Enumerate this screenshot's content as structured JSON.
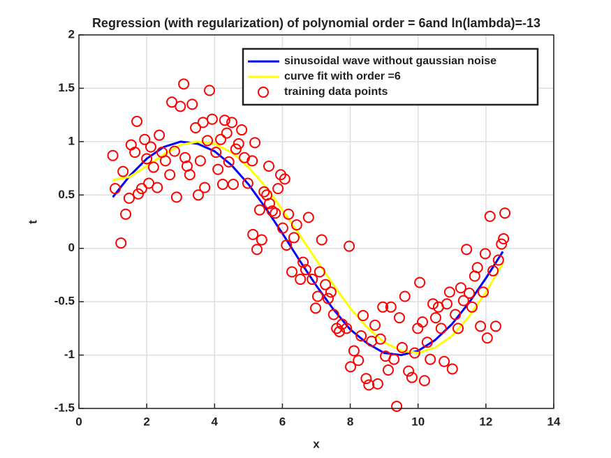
{
  "chart_data": {
    "type": "line",
    "title": "Regression (with regularization) of polynomial order = 6and ln(lambda)=-13",
    "x_label": "x",
    "y_label": "t",
    "xlim": [
      0,
      14
    ],
    "ylim": [
      -1.5,
      2
    ],
    "xticks": [
      0,
      2,
      4,
      6,
      8,
      10,
      12,
      14
    ],
    "yticks": [
      -1.5,
      -1,
      -0.5,
      0,
      0.5,
      1,
      1.5,
      2
    ],
    "grid": true,
    "legend_location": "northeast",
    "series": [
      {
        "name": "sinusoidal wave without gaussian noise",
        "color": "#0000ff",
        "style": "line",
        "x": [
          1,
          1.5,
          2,
          2.5,
          3,
          3.5,
          4,
          4.5,
          5,
          5.5,
          6,
          6.5,
          7,
          7.5,
          8,
          8.5,
          9,
          9.5,
          10,
          10.5,
          11,
          11.5,
          12,
          12.5
        ],
        "values": [
          0.48,
          0.68,
          0.84,
          0.95,
          1.0,
          0.98,
          0.91,
          0.78,
          0.6,
          0.38,
          0.14,
          -0.11,
          -0.35,
          -0.57,
          -0.76,
          -0.89,
          -0.98,
          -1.0,
          -0.96,
          -0.86,
          -0.71,
          -0.51,
          -0.28,
          -0.03
        ]
      },
      {
        "name": "curve fit with order =6",
        "color": "#ffff00",
        "style": "line",
        "x": [
          1,
          1.5,
          2,
          2.5,
          3,
          3.5,
          4,
          4.5,
          5,
          5.5,
          6,
          6.5,
          7,
          7.5,
          8,
          8.5,
          9,
          9.5,
          10,
          10.5,
          11,
          11.5,
          12,
          12.5
        ],
        "values": [
          0.64,
          0.67,
          0.77,
          0.88,
          0.97,
          1.0,
          0.98,
          0.9,
          0.76,
          0.58,
          0.36,
          0.13,
          -0.11,
          -0.34,
          -0.56,
          -0.74,
          -0.88,
          -0.96,
          -0.98,
          -0.93,
          -0.82,
          -0.64,
          -0.41,
          -0.14
        ]
      },
      {
        "name": "training data points",
        "color": "#ff0000",
        "style": "marker",
        "x": [
          1.0,
          1.07,
          1.24,
          1.38,
          1.3,
          1.48,
          1.54,
          1.65,
          1.71,
          1.75,
          1.85,
          1.94,
          2.0,
          2.06,
          2.12,
          2.2,
          2.31,
          2.37,
          2.45,
          2.55,
          2.68,
          2.74,
          2.82,
          2.88,
          2.99,
          3.09,
          3.13,
          3.19,
          3.27,
          3.34,
          3.44,
          3.52,
          3.58,
          3.66,
          3.71,
          3.79,
          3.85,
          3.93,
          4.04,
          4.1,
          4.18,
          4.24,
          4.3,
          4.36,
          4.42,
          4.51,
          4.55,
          4.63,
          4.71,
          4.8,
          4.88,
          4.98,
          5.11,
          5.19,
          5.13,
          5.25,
          5.33,
          5.39,
          5.46,
          5.54,
          5.62,
          5.6,
          5.7,
          5.79,
          5.87,
          5.95,
          6.01,
          6.07,
          6.12,
          6.18,
          6.28,
          6.34,
          6.42,
          6.53,
          6.61,
          6.69,
          6.77,
          6.88,
          6.98,
          7.04,
          7.1,
          7.16,
          7.27,
          7.35,
          7.43,
          7.51,
          7.6,
          7.68,
          7.76,
          7.89,
          7.97,
          8.01,
          8.11,
          8.24,
          8.32,
          8.38,
          8.47,
          8.55,
          8.63,
          8.73,
          8.81,
          8.89,
          8.96,
          9.04,
          9.12,
          9.2,
          9.29,
          9.37,
          9.45,
          9.53,
          9.61,
          9.72,
          9.82,
          9.9,
          9.99,
          10.05,
          10.13,
          10.19,
          10.27,
          10.36,
          10.44,
          10.52,
          10.6,
          10.68,
          10.77,
          10.85,
          10.93,
          11.01,
          11.1,
          11.18,
          11.26,
          11.34,
          11.43,
          11.51,
          11.59,
          11.67,
          11.75,
          11.84,
          11.92,
          11.98,
          12.04,
          12.12,
          12.21,
          12.29,
          12.37,
          12.46,
          12.52,
          12.56
        ],
        "values": [
          0.87,
          0.56,
          0.05,
          0.32,
          0.72,
          0.47,
          0.97,
          0.9,
          1.19,
          0.51,
          0.56,
          1.02,
          0.84,
          0.61,
          0.95,
          0.76,
          0.57,
          1.06,
          0.9,
          0.82,
          0.69,
          1.37,
          0.91,
          0.48,
          1.33,
          1.54,
          0.85,
          0.77,
          0.69,
          1.35,
          1.13,
          0.5,
          0.82,
          1.18,
          0.57,
          1.01,
          1.48,
          1.21,
          0.9,
          0.74,
          1.02,
          0.6,
          1.2,
          1.08,
          0.81,
          1.18,
          0.6,
          0.93,
          0.98,
          1.11,
          0.85,
          0.61,
          0.82,
          0.99,
          0.13,
          -0.01,
          0.36,
          0.08,
          0.53,
          0.5,
          0.42,
          0.77,
          0.35,
          0.33,
          0.56,
          0.69,
          0.19,
          0.65,
          0.03,
          0.32,
          -0.22,
          0.1,
          0.22,
          -0.29,
          -0.13,
          -0.2,
          0.29,
          -0.29,
          -0.56,
          -0.45,
          -0.22,
          0.08,
          -0.34,
          -0.47,
          -0.41,
          -0.62,
          -0.75,
          -0.78,
          -0.71,
          -0.75,
          0.02,
          -1.11,
          -0.96,
          -1.05,
          -0.82,
          -0.63,
          -1.22,
          -1.28,
          -0.87,
          -0.72,
          -1.27,
          -0.85,
          -0.55,
          -1.01,
          -1.14,
          -0.55,
          -1.04,
          -1.48,
          -0.65,
          -0.93,
          -0.45,
          -1.15,
          -1.21,
          -0.98,
          -0.75,
          -0.32,
          -0.69,
          -1.24,
          -0.88,
          -1.04,
          -0.52,
          -0.65,
          -0.55,
          -0.75,
          -1.06,
          -0.52,
          -0.41,
          -1.13,
          -0.62,
          -0.75,
          -0.37,
          -0.49,
          -0.01,
          -0.42,
          -0.55,
          -0.26,
          -0.18,
          -0.73,
          -0.41,
          -0.05,
          -0.84,
          0.3,
          -0.21,
          -0.73,
          -0.11,
          0.04,
          0.09,
          0.33
        ]
      }
    ]
  }
}
